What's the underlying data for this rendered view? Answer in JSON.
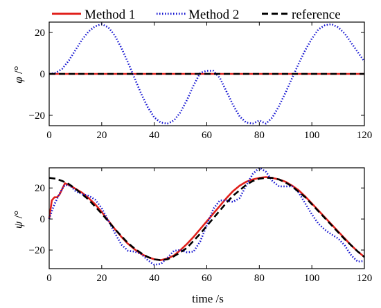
{
  "legend": [
    {
      "label": "Method 1",
      "color": "#e0201b",
      "style": "solid"
    },
    {
      "label": "Method 2",
      "color": "#1010d0",
      "style": "dotted"
    },
    {
      "label": "reference",
      "color": "#000000",
      "style": "dashed"
    }
  ],
  "xlabel": "time /s",
  "chart_data": [
    {
      "type": "line",
      "ylabel_symbol": "φ",
      "ylabel_unit": " /°",
      "xlim": [
        0,
        120
      ],
      "ylim": [
        -25,
        25
      ],
      "xticks": [
        0,
        20,
        40,
        60,
        80,
        100,
        120
      ],
      "yticks": [
        -20,
        0,
        20
      ],
      "series": [
        {
          "name": "Method 1",
          "color": "#e0201b",
          "style": "solid",
          "x": [
            0,
            120
          ],
          "y": [
            0,
            0
          ]
        },
        {
          "name": "Method 2",
          "color": "#1010d0",
          "style": "dotted",
          "x": [
            0,
            2.5,
            5,
            7.5,
            10,
            12.5,
            15,
            17.5,
            20,
            22.5,
            25,
            27.5,
            30,
            32.5,
            35,
            37.5,
            40,
            42.5,
            45,
            47.5,
            50,
            52.5,
            55,
            57.5,
            60,
            62.5,
            65,
            67.5,
            70,
            72.5,
            75,
            77.5,
            80,
            82.5,
            85,
            87.5,
            90,
            92.5,
            95,
            97.5,
            100,
            102.5,
            105,
            107.5,
            110,
            112.5,
            115,
            117.5,
            120
          ],
          "y": [
            0,
            0.5,
            2.5,
            6.5,
            11.5,
            16.5,
            20.5,
            23,
            24,
            22.5,
            18.5,
            12.5,
            5.5,
            -2,
            -9.5,
            -16,
            -21,
            -23.5,
            -24,
            -22.5,
            -18.5,
            -12.5,
            -5.5,
            0.5,
            1.5,
            1.5,
            -2,
            -8.5,
            -15,
            -20.5,
            -23.5,
            -24,
            -22.5,
            -24,
            -21,
            -15.5,
            -9,
            -2,
            5,
            11.5,
            17,
            21.5,
            23.5,
            24,
            22.5,
            19.5,
            15,
            10.5,
            6
          ]
        },
        {
          "name": "reference",
          "color": "#000000",
          "style": "dashed",
          "x": [
            0,
            120
          ],
          "y": [
            0,
            0
          ]
        }
      ]
    },
    {
      "type": "line",
      "ylabel_symbol": "ψ",
      "ylabel_unit": " /°",
      "xlim": [
        0,
        120
      ],
      "ylim": [
        -32,
        33
      ],
      "xticks": [
        0,
        20,
        40,
        60,
        80,
        100,
        120
      ],
      "yticks": [
        -20,
        0,
        20
      ],
      "series": [
        {
          "name": "Method 1",
          "color": "#e0201b",
          "style": "solid",
          "x": [
            0,
            1,
            2,
            3,
            4,
            5,
            6,
            8,
            10,
            12.5,
            15,
            17.5,
            20,
            22.5,
            25,
            27.5,
            30,
            32.5,
            35,
            37.5,
            40,
            42.5,
            45,
            47.5,
            50,
            52.5,
            55,
            57.5,
            60,
            62.5,
            65,
            67.5,
            70,
            72.5,
            75,
            77.5,
            80,
            82.5,
            85,
            87.5,
            90,
            92.5,
            95,
            97.5,
            100,
            102.5,
            105,
            107.5,
            110,
            112.5,
            115,
            117.5,
            120
          ],
          "y": [
            0,
            12,
            14,
            14,
            16,
            19.5,
            23,
            21.5,
            19.5,
            17,
            13.5,
            9.5,
            4.5,
            -1,
            -6.5,
            -11.5,
            -16,
            -19.5,
            -22.5,
            -24.5,
            -26,
            -26.5,
            -25.5,
            -23.5,
            -20,
            -16,
            -11.5,
            -6.5,
            -1.5,
            3.5,
            8.5,
            13.5,
            18,
            21.5,
            24,
            25.5,
            26.5,
            27,
            26.5,
            25.5,
            24,
            21.5,
            18.5,
            14.5,
            10,
            5.5,
            1,
            -3.5,
            -8,
            -12.5,
            -17,
            -21,
            -24.5
          ]
        },
        {
          "name": "Method 2",
          "color": "#1010d0",
          "style": "dotted",
          "x": [
            0,
            1,
            2,
            3,
            4,
            5,
            6,
            8,
            10,
            12.5,
            15,
            17.5,
            20,
            22.5,
            25,
            27.5,
            30,
            32.5,
            35,
            37.5,
            40,
            42.5,
            45,
            47.5,
            50,
            52.5,
            55,
            57.5,
            60,
            62.5,
            65,
            67.5,
            70,
            72.5,
            75,
            77.5,
            80,
            82.5,
            85,
            87.5,
            90,
            92.5,
            95,
            97.5,
            100,
            102.5,
            105,
            107.5,
            110,
            112.5,
            115,
            117.5,
            120
          ],
          "y": [
            0,
            5,
            9.5,
            13,
            16.5,
            19.5,
            22,
            21.5,
            18,
            16,
            15,
            12.5,
            7,
            -1,
            -9,
            -16.5,
            -20.5,
            -21,
            -22.5,
            -26.5,
            -29.5,
            -29,
            -25,
            -20.5,
            -20,
            -21.5,
            -21,
            -14.5,
            -4,
            6.5,
            12,
            12,
            11,
            13.5,
            21.5,
            29,
            33,
            30.5,
            24.5,
            21,
            21,
            21,
            17,
            10,
            3,
            -3,
            -7,
            -10,
            -12.5,
            -17,
            -23.5,
            -27.5,
            -27
          ]
        },
        {
          "name": "reference",
          "color": "#000000",
          "style": "dashed",
          "x": [
            0,
            2.5,
            5,
            7.5,
            10,
            12.5,
            15,
            17.5,
            20,
            22.5,
            25,
            27.5,
            30,
            32.5,
            35,
            37.5,
            40,
            42.5,
            45,
            47.5,
            50,
            52.5,
            55,
            57.5,
            60,
            62.5,
            65,
            67.5,
            70,
            72.5,
            75,
            77.5,
            80,
            82.5,
            85,
            87.5,
            90,
            92.5,
            95,
            97.5,
            100,
            102.5,
            105,
            107.5,
            110,
            112.5,
            115,
            117.5,
            120
          ],
          "y": [
            26.5,
            26,
            24.5,
            22.5,
            19.5,
            16,
            12.5,
            8,
            3.5,
            -1.5,
            -6.5,
            -11,
            -15.5,
            -19,
            -22,
            -24.5,
            -26,
            -26.5,
            -26,
            -24,
            -21.5,
            -18.5,
            -14,
            -9.5,
            -4.5,
            0.5,
            5.5,
            10.5,
            15,
            18.5,
            22,
            24.5,
            26,
            26.5,
            26.5,
            25.5,
            23.5,
            21,
            17.5,
            14,
            9.5,
            5,
            0.5,
            -4,
            -8.5,
            -13,
            -17,
            -21,
            -24.5
          ]
        }
      ]
    }
  ]
}
